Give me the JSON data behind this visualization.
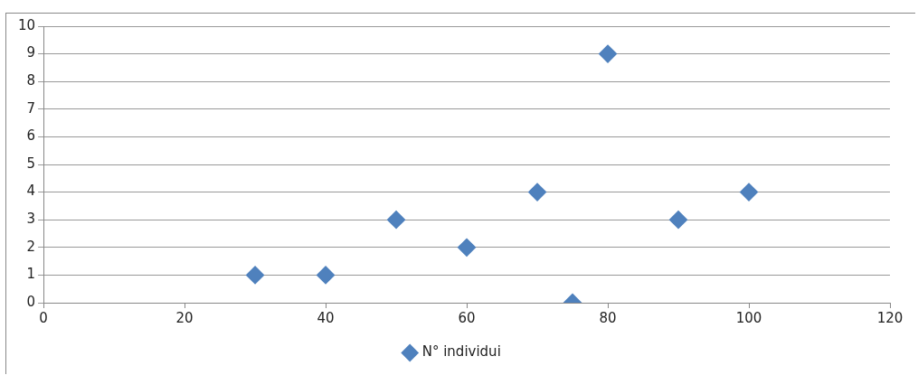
{
  "chart_data": {
    "type": "scatter",
    "x": [
      30,
      40,
      50,
      60,
      70,
      75,
      80,
      90,
      100
    ],
    "series": [
      {
        "name": "N° individui",
        "color": "#4f81bd",
        "values": [
          1,
          1,
          3,
          2,
          4,
          0,
          9,
          3,
          4
        ]
      }
    ],
    "xlim": [
      0,
      120
    ],
    "xticks": [
      0,
      20,
      40,
      60,
      80,
      100,
      120
    ],
    "ylim": [
      0,
      10
    ],
    "yticks": [
      0,
      1,
      2,
      3,
      4,
      5,
      6,
      7,
      8,
      9,
      10
    ],
    "grid": "y",
    "legend": "bottom",
    "marker": "diamond"
  }
}
